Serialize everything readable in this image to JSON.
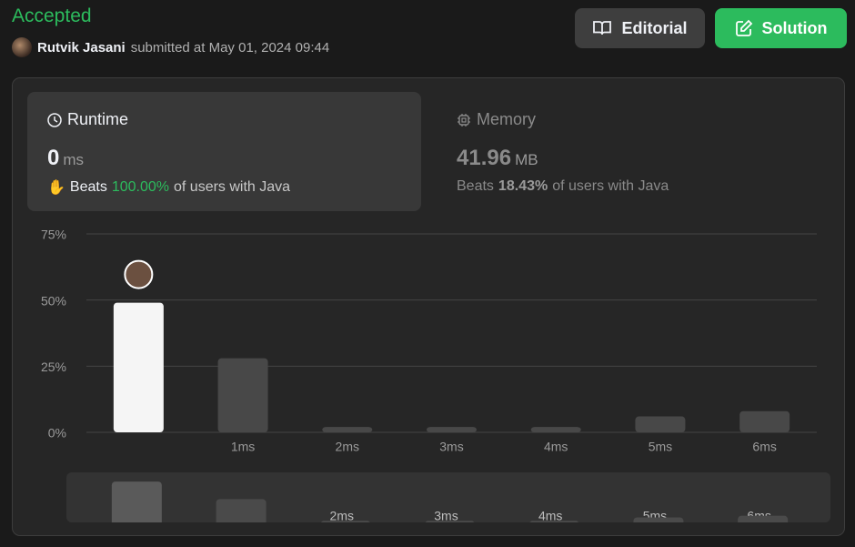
{
  "header": {
    "status": "Accepted",
    "user": "Rutvik Jasani",
    "submitted": "submitted at May 01, 2024 09:44"
  },
  "buttons": [
    "Editorial",
    "Solution"
  ],
  "runtime": {
    "label": "Runtime",
    "value": "0",
    "unit": "ms",
    "beats": "Beats",
    "percent": "100.00%",
    "suffix": "of users with Java"
  },
  "memory": {
    "label": "Memory",
    "value": "41.96",
    "unit": "MB",
    "beats": "Beats",
    "percent": "18.43%",
    "suffix": "of users with Java"
  },
  "chart_data": {
    "type": "bar",
    "categories": [
      null,
      "1ms",
      "2ms",
      "3ms",
      "4ms",
      "5ms",
      "6ms"
    ],
    "values": [
      49,
      28,
      2,
      2,
      2,
      6,
      8
    ],
    "color": "#484848",
    "highlight": 0,
    "highlight_color": "#f5f5f5",
    "ylim": [
      0,
      75
    ],
    "yticks": [
      {
        "value": 0,
        "label": "0%"
      },
      {
        "value": 25,
        "label": "25%"
      },
      {
        "value": 50,
        "label": "50%"
      },
      {
        "value": 75,
        "label": "75%"
      }
    ],
    "grid": true
  }
}
